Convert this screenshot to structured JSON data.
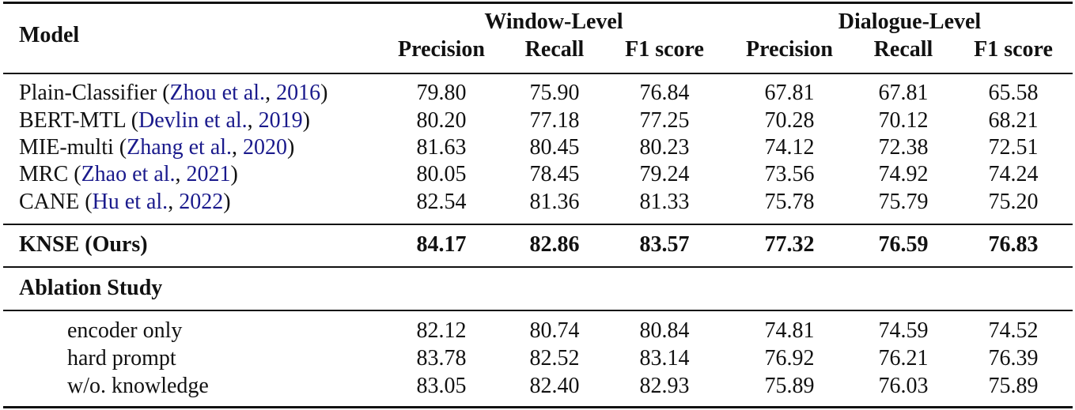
{
  "table": {
    "header_model": "Model",
    "groups": [
      "Window-Level",
      "Dialogue-Level"
    ],
    "columns": [
      "Precision",
      "Recall",
      "F1 score",
      "Precision",
      "Recall",
      "F1 score"
    ],
    "rows": [
      {
        "label_parts": [
          "Plain-Classifier (",
          "Zhou et al.",
          ", ",
          "2016",
          ")"
        ],
        "values": [
          "79.80",
          "75.90",
          "76.84",
          "67.81",
          "67.81",
          "65.58"
        ]
      },
      {
        "label_parts": [
          "BERT-MTL (",
          "Devlin et al.",
          ", ",
          "2019",
          ")"
        ],
        "values": [
          "80.20",
          "77.18",
          "77.25",
          "70.28",
          "70.12",
          "68.21"
        ]
      },
      {
        "label_parts": [
          "MIE-multi (",
          "Zhang et al.",
          ", ",
          "2020",
          ")"
        ],
        "values": [
          "81.63",
          "80.45",
          "80.23",
          "74.12",
          "72.38",
          "72.51"
        ]
      },
      {
        "label_parts": [
          "MRC (",
          "Zhao et al.",
          ", ",
          "2021",
          ")"
        ],
        "values": [
          "80.05",
          "78.45",
          "79.24",
          "73.56",
          "74.92",
          "74.24"
        ]
      },
      {
        "label_parts": [
          "CANE (",
          "Hu et al.",
          ", ",
          "2022",
          ")"
        ],
        "values": [
          "82.54",
          "81.36",
          "81.33",
          "75.78",
          "75.79",
          "75.20"
        ]
      }
    ],
    "ours": {
      "label": "KNSE (Ours)",
      "values": [
        "84.17",
        "82.86",
        "83.57",
        "77.32",
        "76.59",
        "76.83"
      ]
    },
    "ablation_title": "Ablation Study",
    "ablation_rows": [
      {
        "label": "encoder only",
        "values": [
          "82.12",
          "80.74",
          "80.84",
          "74.81",
          "74.59",
          "74.52"
        ]
      },
      {
        "label": "hard prompt",
        "values": [
          "83.78",
          "82.52",
          "83.14",
          "76.92",
          "76.21",
          "76.39"
        ]
      },
      {
        "label": "w/o. knowledge",
        "values": [
          "83.05",
          "82.40",
          "82.93",
          "75.89",
          "76.03",
          "75.89"
        ]
      }
    ]
  }
}
